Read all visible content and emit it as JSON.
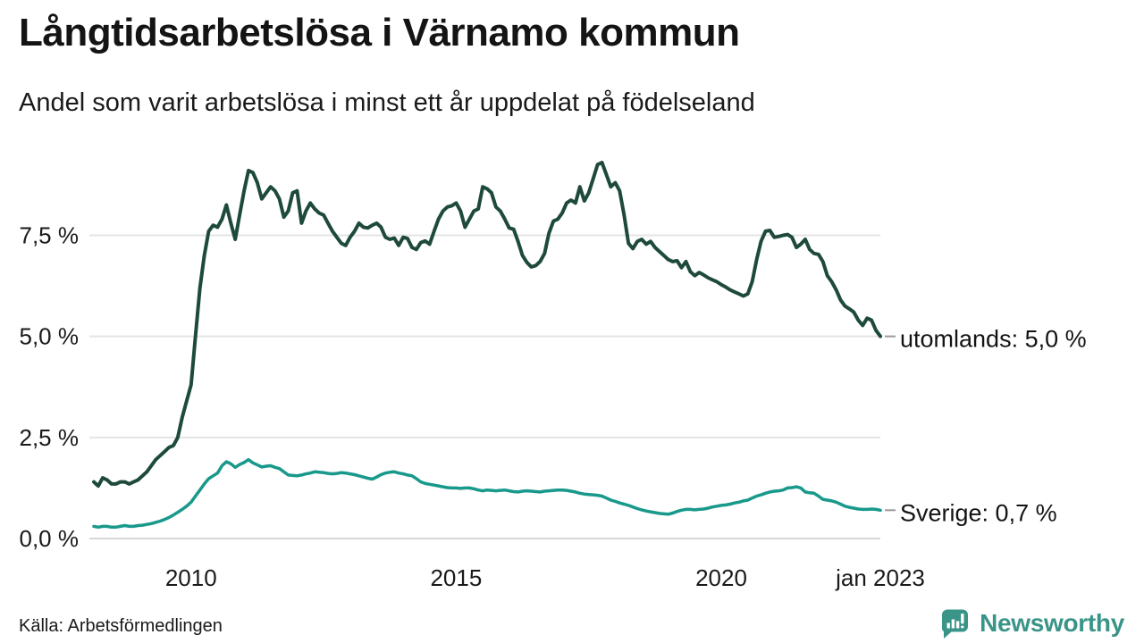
{
  "source": "Källa: Arbetsförmedlingen",
  "branding": {
    "name": "Newsworthy",
    "color": "#3a9488",
    "icon": "bar-chart-speech-bubble-icon"
  },
  "chart_data": {
    "type": "line",
    "title": "Långtidsarbetslösa i Värnamo kommun",
    "subtitle": "Andel som varit arbetslösa i minst ett år uppdelat på födelseland",
    "unit": "%",
    "x_start": "2008-03",
    "x_end": "2023-01",
    "x_interval": "monthly",
    "grid": "horizontal",
    "ylim": [
      0,
      9.6
    ],
    "y_ticks": [
      {
        "label": "0,0 %",
        "value": 0.0
      },
      {
        "label": "2,5 %",
        "value": 2.5
      },
      {
        "label": "5,0 %",
        "value": 5.0
      },
      {
        "label": "7,5 %",
        "value": 7.5
      }
    ],
    "x_ticks": [
      {
        "label": "2010",
        "month_index": 22
      },
      {
        "label": "2015",
        "month_index": 82
      },
      {
        "label": "2020",
        "month_index": 142
      },
      {
        "label": "jan 2023",
        "month_index": 178
      }
    ],
    "series": [
      {
        "name": "utomlands",
        "end_label": "utomlands: 5,0 %",
        "end_value_text": "5,0 %",
        "color": "#1e4a3c",
        "stroke_width": 4,
        "values": [
          1.4,
          1.3,
          1.5,
          1.45,
          1.35,
          1.35,
          1.4,
          1.4,
          1.35,
          1.4,
          1.45,
          1.55,
          1.65,
          1.8,
          1.95,
          2.05,
          2.15,
          2.25,
          2.3,
          2.5,
          3.0,
          3.4,
          3.8,
          5.0,
          6.2,
          7.0,
          7.6,
          7.75,
          7.7,
          7.9,
          8.25,
          7.8,
          7.4,
          8.0,
          8.6,
          9.1,
          9.05,
          8.8,
          8.4,
          8.55,
          8.7,
          8.6,
          8.4,
          7.95,
          8.1,
          8.55,
          8.6,
          7.8,
          8.1,
          8.3,
          8.15,
          8.05,
          8.0,
          7.8,
          7.6,
          7.45,
          7.3,
          7.25,
          7.45,
          7.6,
          7.8,
          7.7,
          7.68,
          7.75,
          7.8,
          7.7,
          7.45,
          7.4,
          7.43,
          7.25,
          7.45,
          7.42,
          7.2,
          7.15,
          7.32,
          7.36,
          7.28,
          7.6,
          7.9,
          8.1,
          8.2,
          8.23,
          8.3,
          8.1,
          7.7,
          7.9,
          8.1,
          8.15,
          8.7,
          8.65,
          8.55,
          8.2,
          8.1,
          7.9,
          7.68,
          7.65,
          7.35,
          7.0,
          6.83,
          6.72,
          6.75,
          6.85,
          7.05,
          7.55,
          7.85,
          7.9,
          8.05,
          8.3,
          8.37,
          8.3,
          8.7,
          8.35,
          8.55,
          8.9,
          9.25,
          9.3,
          9.0,
          8.7,
          8.8,
          8.6,
          8.0,
          7.3,
          7.17,
          7.35,
          7.4,
          7.28,
          7.35,
          7.2,
          7.1,
          7.0,
          6.9,
          6.85,
          6.87,
          6.7,
          6.85,
          6.6,
          6.5,
          6.58,
          6.52,
          6.45,
          6.4,
          6.35,
          6.28,
          6.22,
          6.15,
          6.1,
          6.05,
          6.0,
          6.05,
          6.35,
          6.9,
          7.35,
          7.6,
          7.62,
          7.45,
          7.47,
          7.5,
          7.52,
          7.45,
          7.2,
          7.28,
          7.4,
          7.15,
          7.05,
          7.03,
          6.85,
          6.5,
          6.35,
          6.15,
          5.9,
          5.75,
          5.68,
          5.6,
          5.4,
          5.27,
          5.45,
          5.4,
          5.15,
          5.0
        ]
      },
      {
        "name": "Sverige",
        "end_label": "Sverige: 0,7 %",
        "end_value_text": "0,7 %",
        "color": "#18998b",
        "stroke_width": 3.5,
        "values": [
          0.3,
          0.28,
          0.3,
          0.3,
          0.28,
          0.28,
          0.3,
          0.32,
          0.3,
          0.3,
          0.32,
          0.33,
          0.35,
          0.37,
          0.4,
          0.43,
          0.47,
          0.52,
          0.58,
          0.65,
          0.72,
          0.8,
          0.9,
          1.05,
          1.2,
          1.35,
          1.48,
          1.55,
          1.62,
          1.8,
          1.9,
          1.85,
          1.76,
          1.83,
          1.88,
          1.95,
          1.87,
          1.82,
          1.77,
          1.79,
          1.8,
          1.76,
          1.73,
          1.65,
          1.57,
          1.56,
          1.55,
          1.57,
          1.6,
          1.62,
          1.65,
          1.64,
          1.63,
          1.61,
          1.6,
          1.61,
          1.63,
          1.62,
          1.6,
          1.58,
          1.55,
          1.52,
          1.49,
          1.47,
          1.52,
          1.58,
          1.62,
          1.64,
          1.65,
          1.62,
          1.6,
          1.57,
          1.55,
          1.48,
          1.4,
          1.36,
          1.34,
          1.32,
          1.3,
          1.28,
          1.26,
          1.25,
          1.25,
          1.24,
          1.25,
          1.25,
          1.23,
          1.2,
          1.18,
          1.2,
          1.19,
          1.18,
          1.19,
          1.2,
          1.18,
          1.16,
          1.15,
          1.17,
          1.18,
          1.17,
          1.16,
          1.15,
          1.17,
          1.18,
          1.19,
          1.2,
          1.2,
          1.19,
          1.17,
          1.15,
          1.12,
          1.1,
          1.09,
          1.08,
          1.07,
          1.05,
          1.0,
          0.95,
          0.92,
          0.88,
          0.85,
          0.82,
          0.78,
          0.74,
          0.71,
          0.68,
          0.66,
          0.64,
          0.62,
          0.61,
          0.6,
          0.63,
          0.67,
          0.7,
          0.72,
          0.72,
          0.71,
          0.72,
          0.73,
          0.75,
          0.78,
          0.8,
          0.82,
          0.83,
          0.85,
          0.88,
          0.9,
          0.93,
          0.95,
          1.0,
          1.05,
          1.08,
          1.12,
          1.15,
          1.17,
          1.18,
          1.2,
          1.25,
          1.26,
          1.28,
          1.25,
          1.15,
          1.13,
          1.12,
          1.05,
          0.97,
          0.95,
          0.93,
          0.9,
          0.85,
          0.8,
          0.77,
          0.75,
          0.73,
          0.72,
          0.72,
          0.73,
          0.72,
          0.7
        ]
      }
    ]
  }
}
